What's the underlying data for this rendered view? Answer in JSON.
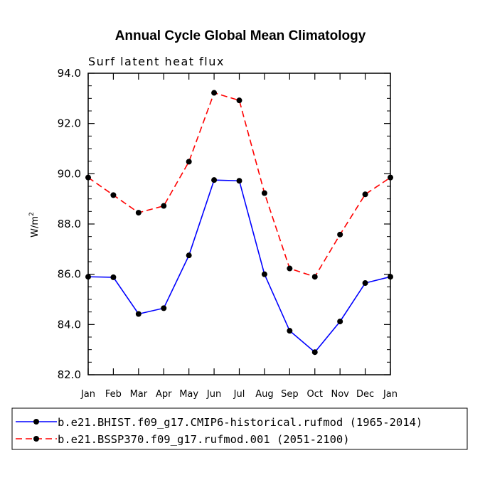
{
  "chart_data": {
    "type": "line",
    "title": "Annual Cycle Global Mean Climatology",
    "subtitle": "Surf latent heat flux",
    "ylabel": "W/m",
    "ylabel_superscript": "2",
    "ylim": [
      82.0,
      94.0
    ],
    "yticks": [
      "82.0",
      "84.0",
      "86.0",
      "88.0",
      "90.0",
      "92.0",
      "94.0"
    ],
    "categories": [
      "Jan",
      "Feb",
      "Mar",
      "Apr",
      "May",
      "Jun",
      "Jul",
      "Aug",
      "Sep",
      "Oct",
      "Nov",
      "Dec",
      "Jan"
    ],
    "series": [
      {
        "name": "b.e21.BHIST.f09_g17.CMIP6-historical.rufmod (1965-2014)",
        "color": "#0000ff",
        "dash": "solid",
        "values": [
          85.9,
          85.88,
          84.42,
          84.65,
          86.75,
          89.75,
          89.72,
          86.0,
          83.75,
          82.9,
          84.12,
          85.65,
          85.9
        ]
      },
      {
        "name": "b.e21.BSSP370.f09_g17.rufmod.001 (2051-2100)",
        "color": "#ff0000",
        "dash": "dashed",
        "values": [
          89.85,
          89.15,
          88.45,
          88.72,
          90.48,
          93.22,
          92.92,
          89.23,
          86.23,
          85.9,
          87.58,
          89.18,
          89.85
        ]
      }
    ]
  }
}
